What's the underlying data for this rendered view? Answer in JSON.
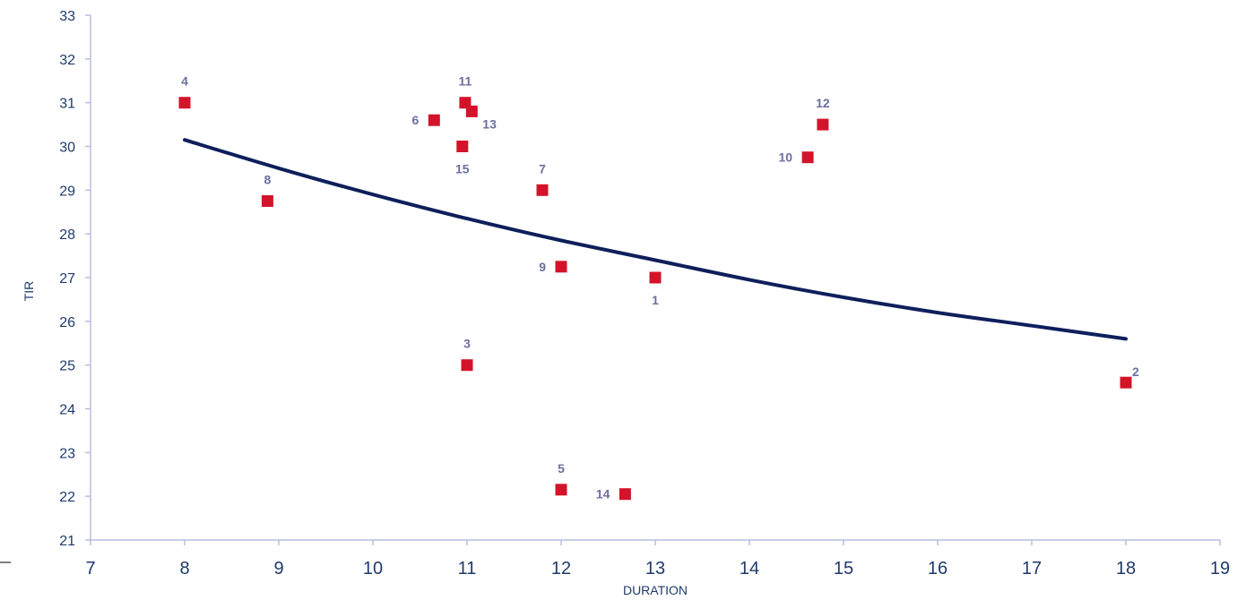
{
  "chart_data": {
    "type": "scatter",
    "xlabel": "DURATION",
    "ylabel": "TIR",
    "xlim": [
      7,
      19
    ],
    "ylim": [
      21,
      33
    ],
    "xticks": [
      7,
      8,
      9,
      10,
      11,
      12,
      13,
      14,
      15,
      16,
      17,
      18,
      19
    ],
    "yticks": [
      21,
      22,
      23,
      24,
      25,
      26,
      27,
      28,
      29,
      30,
      31,
      32,
      33
    ],
    "grid": false,
    "legend": "none",
    "marker": "square",
    "marker_color": "#d2142a",
    "trendline_color": "#0e1f5b",
    "label_color": "#6b6f9e",
    "axis_color": "#1f3a6b",
    "points": [
      {
        "label": "1",
        "x": 13.0,
        "y": 27.0,
        "label_pos": "below"
      },
      {
        "label": "2",
        "x": 18.0,
        "y": 24.6,
        "label_pos": "above-right"
      },
      {
        "label": "3",
        "x": 11.0,
        "y": 25.0,
        "label_pos": "above"
      },
      {
        "label": "4",
        "x": 8.0,
        "y": 31.0,
        "label_pos": "above"
      },
      {
        "label": "5",
        "x": 12.0,
        "y": 22.15,
        "label_pos": "above"
      },
      {
        "label": "6",
        "x": 10.65,
        "y": 30.6,
        "label_pos": "left"
      },
      {
        "label": "7",
        "x": 11.8,
        "y": 29.0,
        "label_pos": "above"
      },
      {
        "label": "8",
        "x": 8.88,
        "y": 28.75,
        "label_pos": "above"
      },
      {
        "label": "9",
        "x": 12.0,
        "y": 27.25,
        "label_pos": "left"
      },
      {
        "label": "10",
        "x": 14.62,
        "y": 29.75,
        "label_pos": "left"
      },
      {
        "label": "11",
        "x": 10.98,
        "y": 31.0,
        "label_pos": "above"
      },
      {
        "label": "12",
        "x": 14.78,
        "y": 30.5,
        "label_pos": "above"
      },
      {
        "label": "13",
        "x": 11.05,
        "y": 30.8,
        "label_pos": "below-right"
      },
      {
        "label": "14",
        "x": 12.68,
        "y": 22.05,
        "label_pos": "left"
      },
      {
        "label": "15",
        "x": 10.95,
        "y": 30.0,
        "label_pos": "below"
      }
    ],
    "trendline": {
      "type": "curve",
      "points": [
        {
          "x": 8,
          "y": 30.15
        },
        {
          "x": 9,
          "y": 29.5
        },
        {
          "x": 10,
          "y": 28.9
        },
        {
          "x": 11,
          "y": 28.35
        },
        {
          "x": 12,
          "y": 27.85
        },
        {
          "x": 13,
          "y": 27.4
        },
        {
          "x": 14,
          "y": 26.95
        },
        {
          "x": 15,
          "y": 26.55
        },
        {
          "x": 16,
          "y": 26.2
        },
        {
          "x": 17,
          "y": 25.9
        },
        {
          "x": 18,
          "y": 25.6
        }
      ]
    }
  }
}
